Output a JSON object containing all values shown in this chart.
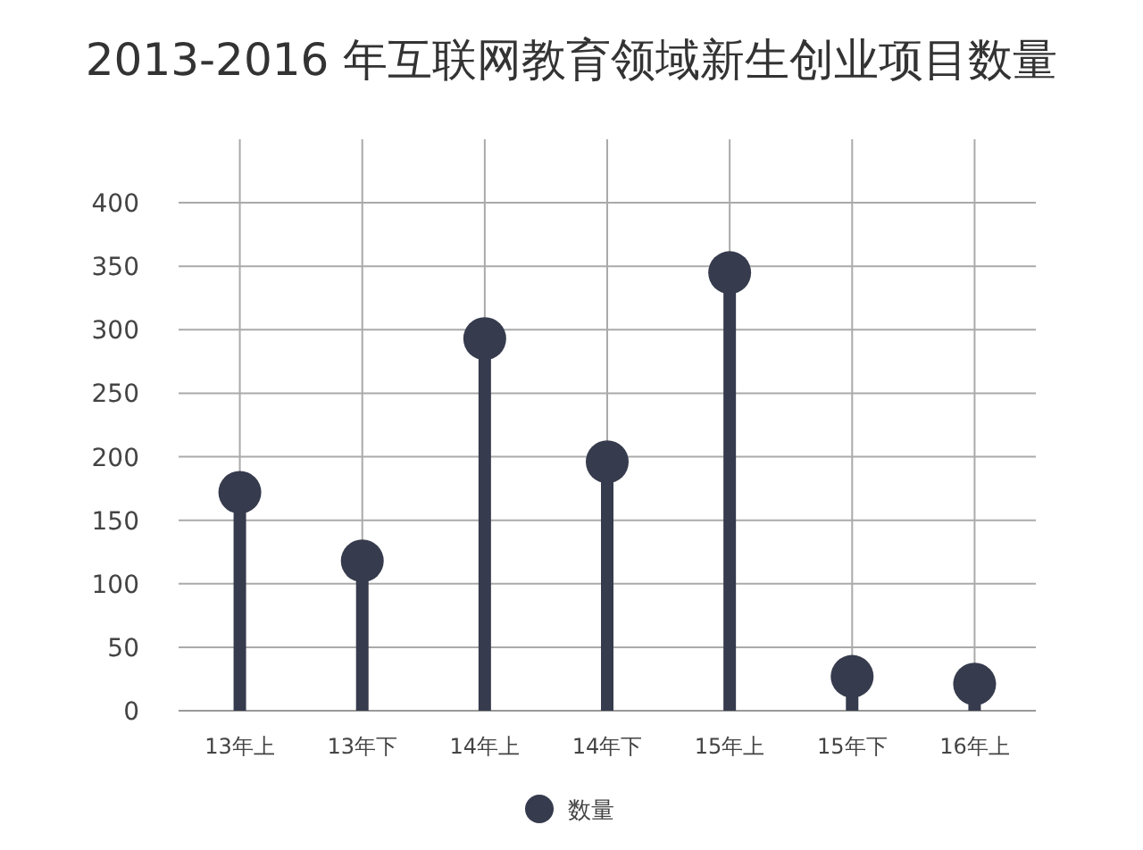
{
  "chart_data": {
    "type": "lollipop",
    "title": "2013-2016 年互联网教育领域新生创业项目数量",
    "categories": [
      "13年上",
      "13年下",
      "14年上",
      "14年下",
      "15年上",
      "15年下",
      "16年上"
    ],
    "series": [
      {
        "name": "数量",
        "color": "#363b4d",
        "values": [
          172,
          118,
          293,
          196,
          345,
          27,
          21
        ]
      }
    ],
    "ylim": [
      0,
      450
    ],
    "yticks": [
      0,
      50,
      100,
      150,
      200,
      250,
      300,
      350,
      400
    ],
    "grid": true,
    "legend": "bottom",
    "marker": "circle"
  }
}
